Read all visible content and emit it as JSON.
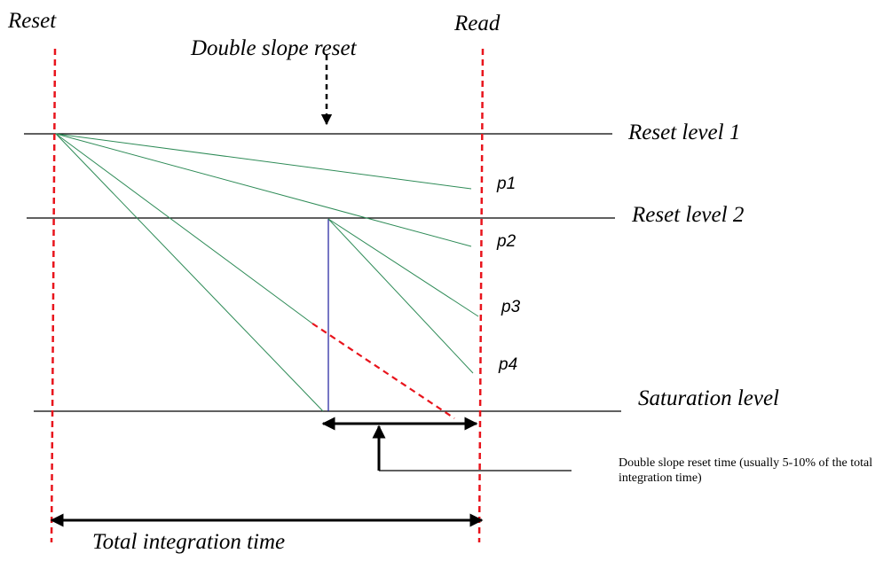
{
  "labels": {
    "reset": "Reset",
    "read": "Read",
    "double_slope_reset": "Double slope reset",
    "reset_level_1": "Reset level 1",
    "reset_level_2": "Reset level 2",
    "saturation_level": "Saturation level",
    "p1": "p1",
    "p2": "p2",
    "p3": "p3",
    "p4": "p4",
    "double_slope_reset_time_note": "Double slope reset time (usually 5-10% of the total integration time)",
    "total_integration_time": "Total integration time"
  },
  "colors": {
    "marker_dashed": "#e8141c",
    "level_line": "#000000",
    "ramp": "#2e8b57",
    "reset_jump": "#1c1c9c",
    "arrow": "#000000"
  }
}
